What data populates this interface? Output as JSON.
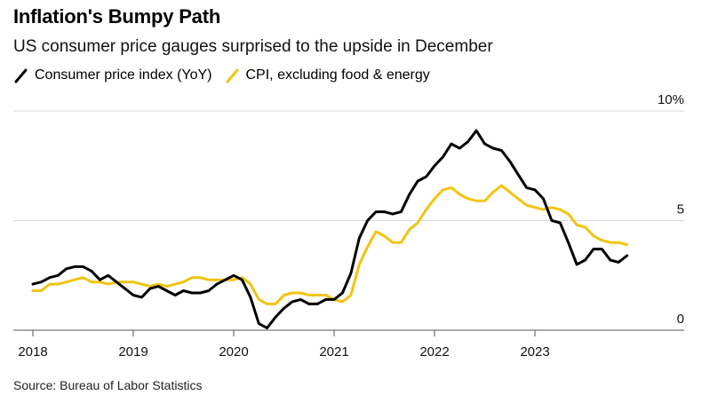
{
  "title": "Inflation's Bumpy Path",
  "subtitle": "US consumer price gauges surprised to the upside in December",
  "source": "Source: Bureau of Labor Statistics",
  "chart_data": {
    "type": "line",
    "y_unit_label": "10%",
    "ylim": [
      0,
      10
    ],
    "y_ticks": [
      0,
      5,
      10
    ],
    "y_tick_labels": [
      "0",
      "5",
      "10%"
    ],
    "x_tick_labels": [
      "2018",
      "2019",
      "2020",
      "2021",
      "2022",
      "2023"
    ],
    "x_tick_years": [
      2018,
      2019,
      2020,
      2021,
      2022,
      2023
    ],
    "xlim": [
      2017.92,
      2024.5
    ],
    "grid": true,
    "legend_position": "top-left",
    "series": [
      {
        "name": "Consumer price index (YoY)",
        "color": "#000000",
        "x": [
          2018.0,
          2018.083,
          2018.167,
          2018.25,
          2018.333,
          2018.417,
          2018.5,
          2018.583,
          2018.667,
          2018.75,
          2018.833,
          2018.917,
          2019.0,
          2019.083,
          2019.167,
          2019.25,
          2019.333,
          2019.417,
          2019.5,
          2019.583,
          2019.667,
          2019.75,
          2019.833,
          2019.917,
          2020.0,
          2020.083,
          2020.167,
          2020.25,
          2020.333,
          2020.417,
          2020.5,
          2020.583,
          2020.667,
          2020.75,
          2020.833,
          2020.917,
          2021.0,
          2021.083,
          2021.167,
          2021.25,
          2021.333,
          2021.417,
          2021.5,
          2021.583,
          2021.667,
          2021.75,
          2021.833,
          2021.917,
          2022.0,
          2022.083,
          2022.167,
          2022.25,
          2022.333,
          2022.417,
          2022.5,
          2022.583,
          2022.667,
          2022.75,
          2022.833,
          2022.917,
          2023.0,
          2023.083,
          2023.167,
          2023.25,
          2023.333,
          2023.417,
          2023.5,
          2023.583,
          2023.667,
          2023.75,
          2023.833,
          2023.917
        ],
        "values": [
          2.1,
          2.2,
          2.4,
          2.5,
          2.8,
          2.9,
          2.9,
          2.7,
          2.3,
          2.5,
          2.2,
          1.9,
          1.6,
          1.5,
          1.9,
          2.0,
          1.8,
          1.6,
          1.8,
          1.7,
          1.7,
          1.8,
          2.1,
          2.3,
          2.5,
          2.3,
          1.5,
          0.3,
          0.1,
          0.6,
          1.0,
          1.3,
          1.4,
          1.2,
          1.2,
          1.4,
          1.4,
          1.7,
          2.6,
          4.2,
          5.0,
          5.4,
          5.4,
          5.3,
          5.4,
          6.2,
          6.8,
          7.0,
          7.5,
          7.9,
          8.5,
          8.3,
          8.6,
          9.1,
          8.5,
          8.3,
          8.2,
          7.7,
          7.1,
          6.5,
          6.4,
          6.0,
          5.0,
          4.9,
          4.0,
          3.0,
          3.2,
          3.7,
          3.7,
          3.2,
          3.1,
          3.4
        ]
      },
      {
        "name": "CPI, excluding food & energy",
        "color": "#f2c40f",
        "x": [
          2018.0,
          2018.083,
          2018.167,
          2018.25,
          2018.333,
          2018.417,
          2018.5,
          2018.583,
          2018.667,
          2018.75,
          2018.833,
          2018.917,
          2019.0,
          2019.083,
          2019.167,
          2019.25,
          2019.333,
          2019.417,
          2019.5,
          2019.583,
          2019.667,
          2019.75,
          2019.833,
          2019.917,
          2020.0,
          2020.083,
          2020.167,
          2020.25,
          2020.333,
          2020.417,
          2020.5,
          2020.583,
          2020.667,
          2020.75,
          2020.833,
          2020.917,
          2021.0,
          2021.083,
          2021.167,
          2021.25,
          2021.333,
          2021.417,
          2021.5,
          2021.583,
          2021.667,
          2021.75,
          2021.833,
          2021.917,
          2022.0,
          2022.083,
          2022.167,
          2022.25,
          2022.333,
          2022.417,
          2022.5,
          2022.583,
          2022.667,
          2022.75,
          2022.833,
          2022.917,
          2023.0,
          2023.083,
          2023.167,
          2023.25,
          2023.333,
          2023.417,
          2023.5,
          2023.583,
          2023.667,
          2023.75,
          2023.833,
          2023.917
        ],
        "values": [
          1.8,
          1.8,
          2.1,
          2.1,
          2.2,
          2.3,
          2.4,
          2.2,
          2.2,
          2.1,
          2.2,
          2.2,
          2.2,
          2.1,
          2.0,
          2.1,
          2.0,
          2.1,
          2.2,
          2.4,
          2.4,
          2.3,
          2.3,
          2.3,
          2.3,
          2.4,
          2.1,
          1.4,
          1.2,
          1.2,
          1.6,
          1.7,
          1.7,
          1.6,
          1.6,
          1.6,
          1.4,
          1.3,
          1.6,
          3.0,
          3.8,
          4.5,
          4.3,
          4.0,
          4.0,
          4.6,
          4.9,
          5.5,
          6.0,
          6.4,
          6.5,
          6.2,
          6.0,
          5.9,
          5.9,
          6.3,
          6.6,
          6.3,
          6.0,
          5.7,
          5.6,
          5.5,
          5.6,
          5.5,
          5.3,
          4.8,
          4.7,
          4.3,
          4.1,
          4.0,
          4.0,
          3.9
        ]
      }
    ]
  }
}
